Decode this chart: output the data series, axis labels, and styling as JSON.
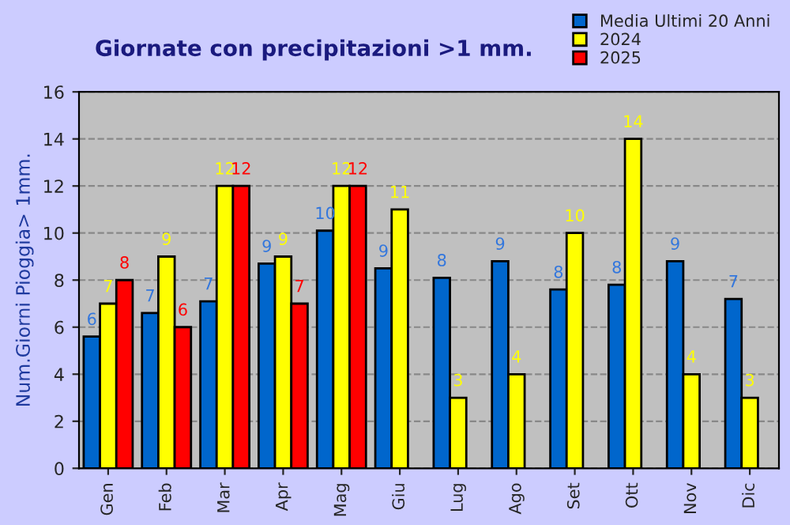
{
  "chart_data": {
    "type": "bar",
    "title": "Giornate con precipitazioni >1 mm.",
    "ylabel": "Num.Giorni Pioggia> 1mm.",
    "categories": [
      "Gen",
      "Feb",
      "Mar",
      "Apr",
      "Mag",
      "Giu",
      "Lug",
      "Ago",
      "Set",
      "Ott",
      "Nov",
      "Dic"
    ],
    "series": [
      {
        "name": "Media Ultimi 20 Anni",
        "color": "#0066cc",
        "values": [
          5.6,
          6.6,
          7.1,
          8.7,
          10.1,
          8.5,
          8.1,
          8.8,
          7.6,
          7.8,
          8.8,
          7.2
        ],
        "value_labels": [
          "6",
          "7",
          "7",
          "9",
          "10",
          "9",
          "8",
          "9",
          "8",
          "8",
          "9",
          "7"
        ]
      },
      {
        "name": "2024",
        "color": "#ffff00",
        "values": [
          7,
          9,
          12,
          9,
          12,
          11,
          3,
          4,
          10,
          14,
          4,
          3
        ],
        "value_labels": [
          "7",
          "9",
          "12",
          "9",
          "12",
          "11",
          "3",
          "4",
          "10",
          "14",
          "4",
          "3"
        ]
      },
      {
        "name": "2025",
        "color": "#ff0000",
        "values": [
          8,
          6,
          12,
          7,
          12,
          null,
          null,
          null,
          null,
          null,
          null,
          null
        ],
        "value_labels": [
          "8",
          "6",
          "12",
          "7",
          "12",
          null,
          null,
          null,
          null,
          null,
          null,
          null
        ]
      }
    ],
    "ylim": [
      0,
      16
    ],
    "yticks": [
      0,
      2,
      4,
      6,
      8,
      10,
      12,
      14,
      16
    ],
    "grid": "y",
    "legend": "top right"
  }
}
